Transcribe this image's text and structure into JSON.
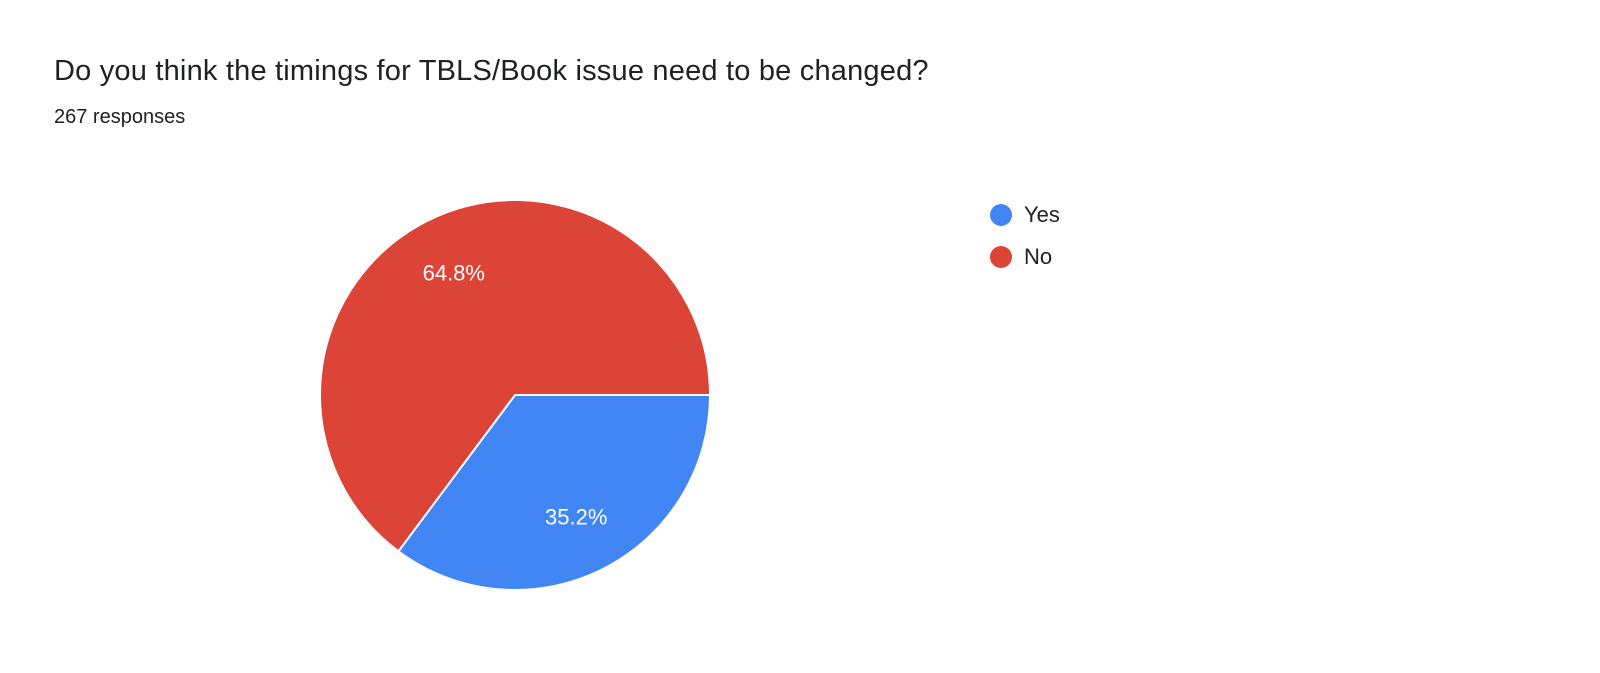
{
  "header": {
    "title": "Do you think the timings for TBLS/Book issue need to be changed?",
    "responses_label": "267 responses"
  },
  "chart_data": {
    "type": "pie",
    "title": "Do you think the timings for TBLS/Book issue need to be changed?",
    "responses_count": 267,
    "slices": [
      {
        "label": "Yes",
        "value_pct": 35.2,
        "color": "#4285f4"
      },
      {
        "label": "No",
        "value_pct": 64.8,
        "color": "#db4437"
      }
    ],
    "start_angle_deg": 0,
    "direction": "clockwise",
    "label_format": "percent",
    "legend_position": "right",
    "background_color": "#ffffff",
    "slice_border_color": "#ffffff"
  }
}
